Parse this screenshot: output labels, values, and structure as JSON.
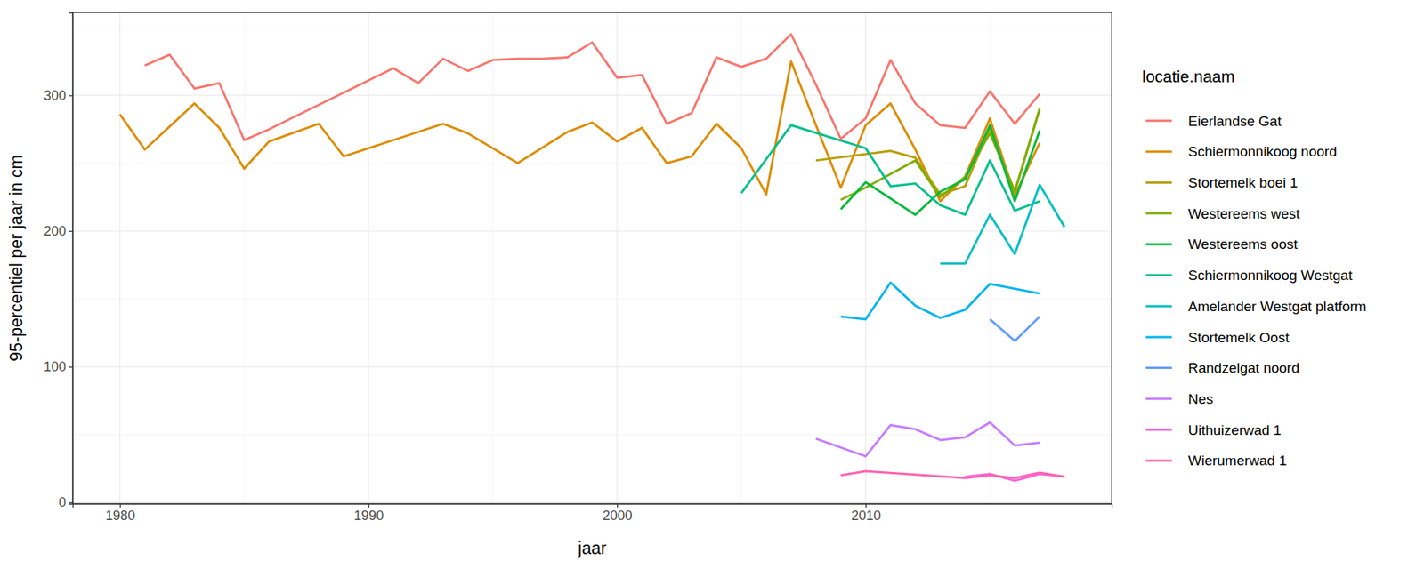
{
  "chart_data": {
    "type": "line",
    "x_label": "jaar",
    "y_label": "95-percentiel per jaar in cm",
    "legend_title": "locatie.naam",
    "legend": "right",
    "grid": true,
    "xlim": [
      1978.1,
      2019.9
    ],
    "ylim": [
      -1,
      361
    ],
    "xticks": [
      1980,
      1990,
      2000,
      2010
    ],
    "yticks": [
      0,
      100,
      200,
      300
    ],
    "series": [
      {
        "name": "Eierlandse Gat",
        "color": "#F8766D",
        "x": [
          1981,
          1982,
          1983,
          1984,
          1985,
          1986,
          1991,
          1992,
          1993,
          1994,
          1995,
          1996,
          1997,
          1998,
          1999,
          2000,
          2001,
          2002,
          2003,
          2004,
          2005,
          2006,
          2007,
          2008,
          2009,
          2010,
          2011,
          2012,
          2013,
          2014,
          2015,
          2016,
          2017
        ],
        "values": [
          322,
          330,
          305,
          309,
          267,
          275,
          320,
          309,
          327,
          318,
          326,
          327,
          327,
          328,
          339,
          313,
          315,
          279,
          287,
          328,
          321,
          327,
          345,
          308,
          268,
          283,
          326,
          294,
          278,
          276,
          303,
          279,
          301
        ]
      },
      {
        "name": "Schiermonnikoog noord",
        "color": "#DE8C00",
        "x": [
          1980,
          1981,
          1982,
          1983,
          1984,
          1985,
          1986,
          1988,
          1989,
          1993,
          1994,
          1996,
          1998,
          1999,
          2000,
          2001,
          2002,
          2003,
          2004,
          2005,
          2006,
          2007,
          2008,
          2009,
          2010,
          2011,
          2012,
          2013,
          2014,
          2015,
          2016,
          2017
        ],
        "values": [
          286,
          260,
          277,
          294,
          276,
          246,
          266,
          279,
          255,
          279,
          272,
          250,
          273,
          280,
          266,
          276,
          250,
          255,
          279,
          261,
          227,
          325,
          278,
          232,
          278,
          294,
          260,
          222,
          240,
          283,
          226,
          265
        ]
      },
      {
        "name": "Stortemelk boei 1",
        "color": "#B79F00",
        "x": [
          2008,
          2011,
          2012,
          2013,
          2014,
          2015,
          2016,
          2017
        ],
        "values": [
          252,
          259,
          254,
          227,
          233,
          276,
          229,
          290
        ]
      },
      {
        "name": "Westereems west",
        "color": "#7CAE00",
        "x": [
          2009,
          2010,
          2012,
          2013,
          2014,
          2015,
          2016,
          2017
        ],
        "values": [
          223,
          232,
          252,
          225,
          240,
          272,
          229,
          290
        ]
      },
      {
        "name": "Westereems oost",
        "color": "#00BA38",
        "x": [
          2009,
          2010,
          2012,
          2013,
          2014,
          2015,
          2016,
          2017
        ],
        "values": [
          216,
          236,
          212,
          229,
          238,
          278,
          222,
          274
        ]
      },
      {
        "name": "Schiermonnikoog Westgat",
        "color": "#00C08B",
        "x": [
          2005,
          2007,
          2010,
          2011,
          2012,
          2013,
          2014,
          2015,
          2016,
          2017
        ],
        "values": [
          228,
          278,
          261,
          233,
          235,
          219,
          212,
          252,
          215,
          222
        ]
      },
      {
        "name": "Amelander Westgat platform",
        "color": "#00BFC4",
        "x": [
          2013,
          2014,
          2015,
          2016,
          2017,
          2018
        ],
        "values": [
          176,
          176,
          212,
          183,
          234,
          203
        ]
      },
      {
        "name": "Stortemelk Oost",
        "color": "#00B4F0",
        "x": [
          2009,
          2010,
          2011,
          2012,
          2013,
          2014,
          2015,
          2017
        ],
        "values": [
          137,
          135,
          162,
          145,
          136,
          142,
          161,
          154
        ]
      },
      {
        "name": "Randzelgat noord",
        "color": "#619CFF",
        "x": [
          2015,
          2016,
          2017
        ],
        "values": [
          135,
          119,
          137
        ]
      },
      {
        "name": "Nes",
        "color": "#C77CFF",
        "x": [
          2008,
          2010,
          2011,
          2012,
          2013,
          2014,
          2015,
          2016,
          2017
        ],
        "values": [
          47,
          34,
          57,
          54,
          46,
          48,
          59,
          42,
          44
        ]
      },
      {
        "name": "Uithuizerwad 1",
        "color": "#F564E3",
        "x": [
          2014,
          2015,
          2016,
          2017,
          2018
        ],
        "values": [
          19,
          21,
          16,
          21,
          19
        ]
      },
      {
        "name": "Wierumerwad 1",
        "color": "#FF64B0",
        "x": [
          2009,
          2010,
          2014,
          2015,
          2016,
          2017,
          2018
        ],
        "values": [
          20,
          23,
          18,
          20,
          18,
          22,
          19
        ]
      }
    ]
  }
}
